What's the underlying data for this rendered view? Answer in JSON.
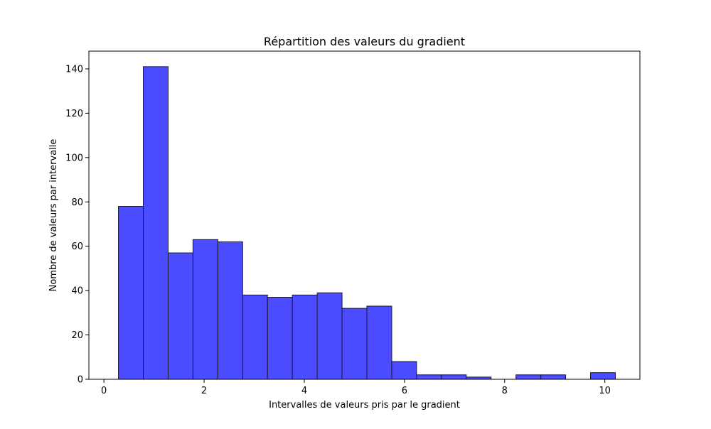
{
  "chart_data": {
    "type": "bar",
    "subtype": "histogram",
    "title": "Répartition des valeurs du gradient",
    "xlabel": "Intervalles de valeurs pris par le gradient",
    "ylabel": "Nombre de valeurs par intervalle",
    "xlim": [
      -0.3,
      10.7
    ],
    "ylim": [
      0,
      148
    ],
    "x_ticks": [
      0,
      2,
      4,
      6,
      8,
      10
    ],
    "x_tick_labels": [
      "0",
      "2",
      "4",
      "6",
      "8",
      "10"
    ],
    "y_ticks": [
      0,
      20,
      40,
      60,
      80,
      100,
      120,
      140
    ],
    "y_tick_labels": [
      "0",
      "20",
      "40",
      "60",
      "80",
      "100",
      "120",
      "140"
    ],
    "bin_edges": [
      0.29,
      0.786,
      1.282,
      1.778,
      2.274,
      2.77,
      3.266,
      3.762,
      4.258,
      4.754,
      5.25,
      5.746,
      6.242,
      6.738,
      7.234,
      7.73,
      8.226,
      8.722,
      9.218,
      9.714,
      10.21
    ],
    "values": [
      78,
      141,
      57,
      63,
      62,
      38,
      37,
      38,
      39,
      32,
      33,
      8,
      2,
      2,
      1,
      0,
      2,
      2,
      0,
      3
    ],
    "bar_color": "#4b4bff",
    "edge_color": "#1a1a2e",
    "grid": false,
    "legend": "none"
  }
}
